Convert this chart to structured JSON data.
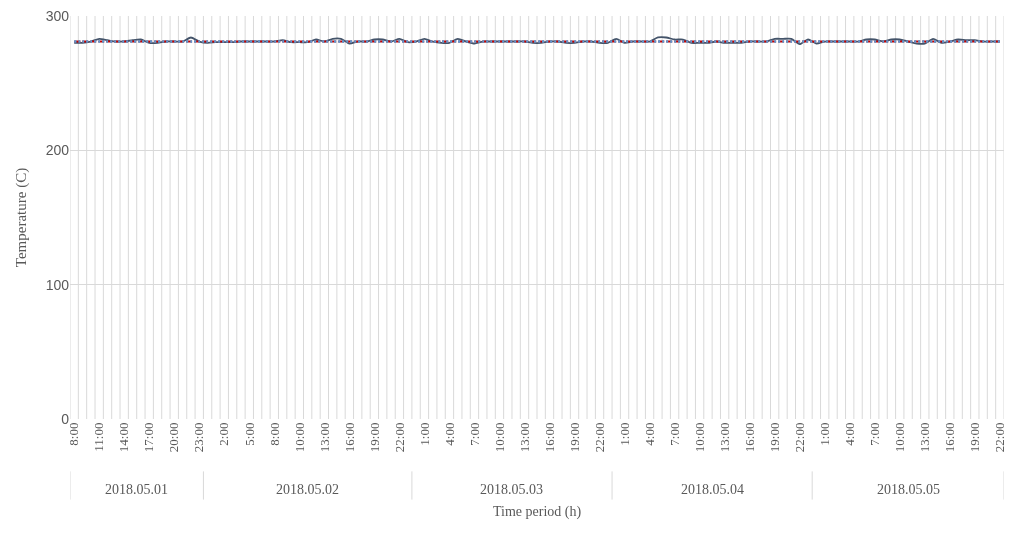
{
  "chart_data": {
    "type": "line",
    "ylabel": "Temperature (C)",
    "xlabel": "Time period (h)",
    "categories": [
      "8:00",
      null,
      null,
      "11:00",
      null,
      null,
      "14:00",
      null,
      null,
      "17:00",
      null,
      null,
      "20:00",
      null,
      null,
      "23:00",
      null,
      null,
      "2:00",
      null,
      null,
      "5:00",
      null,
      null,
      "8:00",
      null,
      null,
      "10:00",
      null,
      null,
      "13:00",
      null,
      null,
      "16:00",
      null,
      null,
      "19:00",
      null,
      null,
      "22:00",
      null,
      null,
      "1:00",
      null,
      null,
      "4:00",
      null,
      null,
      "7:00",
      null,
      null,
      "10:00",
      null,
      null,
      "13:00",
      null,
      null,
      "16:00",
      null,
      null,
      "19:00",
      null,
      null,
      "22:00",
      null,
      null,
      "1:00",
      null,
      null,
      "4:00",
      null,
      null,
      "7:00",
      null,
      null,
      "10:00",
      null,
      null,
      "13:00",
      null,
      null,
      "16:00",
      null,
      null,
      "19:00",
      null,
      null,
      "22:00",
      null,
      null,
      "1:00",
      null,
      null,
      "4:00",
      null,
      null,
      "7:00",
      null,
      null,
      "10:00",
      null,
      null,
      "13:00",
      null,
      null,
      "16:00",
      null,
      null,
      "19:00",
      null,
      null,
      "22:00"
    ],
    "series": [
      {
        "color": "#44546a",
        "line_style": "solid",
        "values": [
          280,
          280,
          281,
          283,
          282,
          281,
          281,
          282,
          282.5,
          280,
          280,
          281,
          281,
          281,
          284,
          281,
          280,
          280.5,
          280.5,
          280.5,
          281,
          281,
          281,
          281,
          281,
          282,
          280.5,
          280.5,
          280.5,
          282.5,
          281,
          283,
          283,
          279.5,
          281,
          281,
          282.5,
          282.5,
          281,
          283,
          280.5,
          281,
          283,
          281,
          280,
          280,
          283,
          281,
          279.5,
          281,
          281,
          281,
          281,
          281,
          281,
          280,
          280,
          281,
          281,
          280,
          280,
          281,
          281,
          280,
          280,
          283,
          280,
          281,
          281,
          281,
          284,
          284,
          282.5,
          282.5,
          280,
          280,
          280,
          281,
          280,
          280,
          280,
          281,
          281,
          281,
          283,
          283,
          283,
          279,
          282.5,
          279.5,
          281,
          281,
          281,
          281,
          281,
          282.5,
          282.5,
          281,
          282.5,
          282.5,
          281,
          279.5,
          279.5,
          283,
          280,
          281,
          282.5,
          282,
          282,
          281,
          281,
          281
        ]
      },
      {
        "color": "#5b9bd5",
        "line_style": "dotted",
        "values": [
          281,
          281,
          281,
          281,
          281,
          281,
          281,
          281,
          281,
          281,
          281,
          281,
          281,
          281,
          281,
          281,
          281,
          281,
          281,
          281,
          281,
          281,
          281,
          281,
          281,
          281,
          281,
          281,
          281,
          281,
          281,
          281,
          281,
          281,
          281,
          281,
          281,
          281,
          281,
          281,
          281,
          281,
          281,
          281,
          281,
          281,
          281,
          281,
          281,
          281,
          281,
          281,
          281,
          281,
          281,
          281,
          281,
          281,
          281,
          281,
          281,
          281,
          281,
          281,
          281,
          281,
          281,
          281,
          281,
          281,
          281,
          281,
          281,
          281,
          281,
          281,
          281,
          281,
          281,
          281,
          281,
          281,
          281,
          281,
          281,
          281,
          281,
          281,
          281,
          281,
          281,
          281,
          281,
          281,
          281,
          281,
          281,
          281,
          281,
          281,
          281,
          281,
          281,
          281,
          281,
          281,
          281,
          281,
          281,
          281,
          281,
          281
        ]
      },
      {
        "color": "#c00000",
        "line_style": "dashed",
        "values": [
          281,
          281,
          281,
          281,
          281,
          281,
          281,
          281,
          281,
          281,
          281,
          281,
          281,
          281,
          281,
          281,
          281,
          281,
          281,
          281,
          281,
          281,
          281,
          281,
          281,
          281,
          281,
          281,
          281,
          281,
          281,
          281,
          281,
          281,
          281,
          281,
          281,
          281,
          281,
          281,
          281,
          281,
          281,
          281,
          281,
          281,
          281,
          281,
          281,
          281,
          281,
          281,
          281,
          281,
          281,
          281,
          281,
          281,
          281,
          281,
          281,
          281,
          281,
          281,
          281,
          281,
          281,
          281,
          281,
          281,
          281,
          281,
          281,
          281,
          281,
          281,
          281,
          281,
          281,
          281,
          281,
          281,
          281,
          281,
          281,
          281,
          281,
          281,
          281,
          281,
          281,
          281,
          281,
          281,
          281,
          281,
          281,
          281,
          281,
          281,
          281,
          281,
          281,
          281,
          281,
          281,
          281,
          281,
          281,
          281,
          281,
          281
        ]
      }
    ],
    "annotations": [
      "2018.05.01",
      "2018.05.02",
      "2018.05.03",
      "2018.05.04",
      "2018.05.05"
    ],
    "ylim": [
      0,
      300
    ],
    "yticks": [
      0,
      100,
      200,
      300
    ],
    "grid": true,
    "legend": false,
    "marker": "none"
  }
}
